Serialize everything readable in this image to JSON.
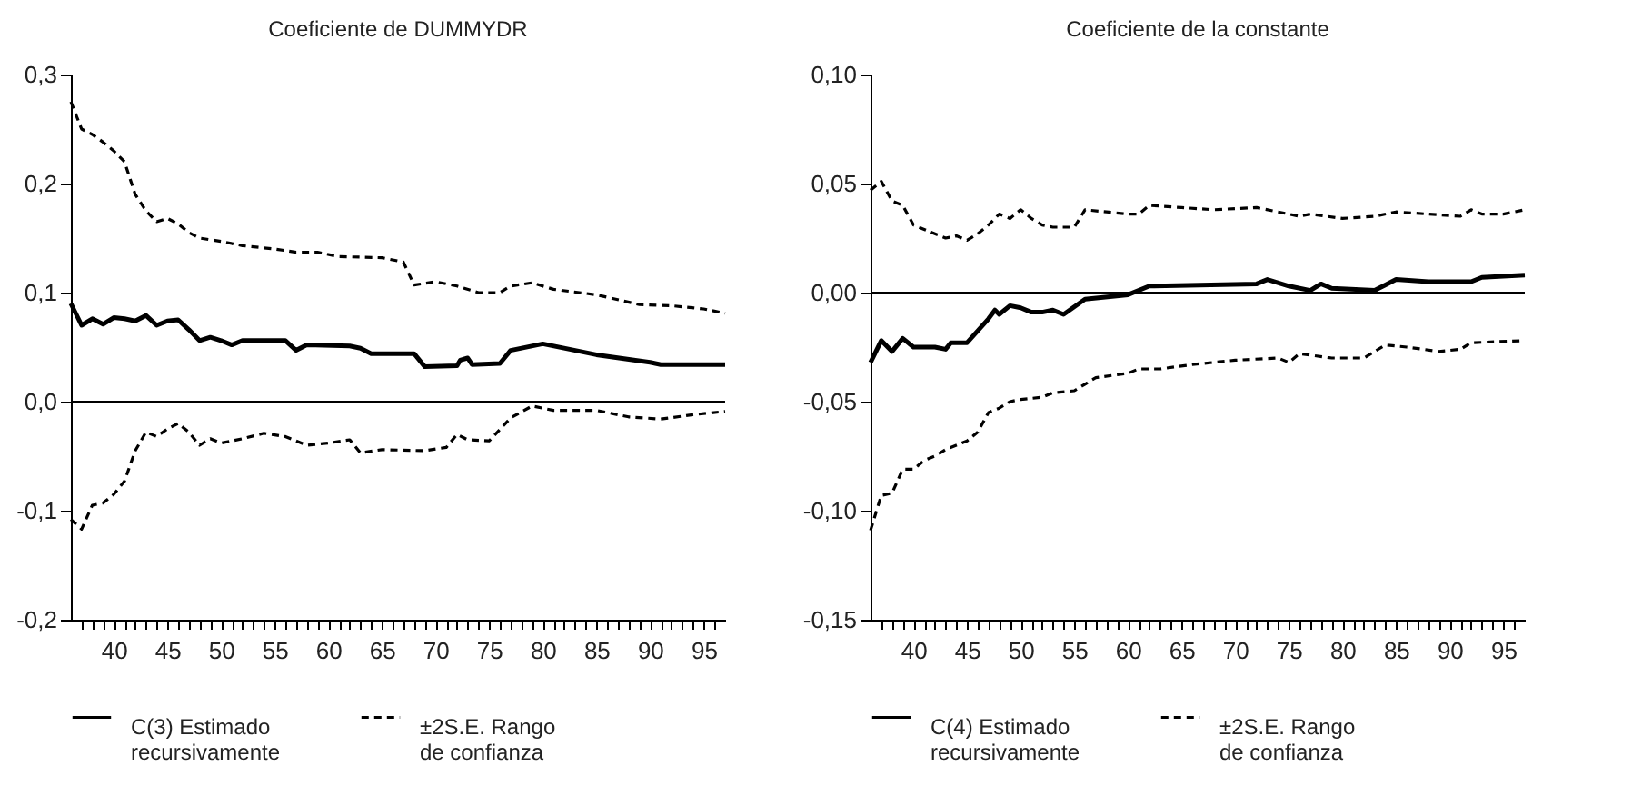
{
  "chart_data": [
    {
      "type": "line",
      "title": "Coeficiente de DUMMYDR",
      "xlim": [
        36,
        97
      ],
      "xticks": [
        {
          "value": 37,
          "label": null
        },
        {
          "value": 38,
          "label": null
        },
        {
          "value": 39,
          "label": null
        },
        40,
        {
          "value": 41,
          "label": null
        },
        {
          "value": 42,
          "label": null
        },
        {
          "value": 43,
          "label": null
        },
        {
          "value": 44,
          "label": null
        },
        45,
        {
          "value": 46,
          "label": null
        },
        {
          "value": 47,
          "label": null
        },
        {
          "value": 48,
          "label": null
        },
        {
          "value": 49,
          "label": null
        },
        50,
        {
          "value": 51,
          "label": null
        },
        {
          "value": 52,
          "label": null
        },
        {
          "value": 53,
          "label": null
        },
        {
          "value": 54,
          "label": null
        },
        55,
        {
          "value": 56,
          "label": null
        },
        {
          "value": 57,
          "label": null
        },
        {
          "value": 58,
          "label": null
        },
        {
          "value": 59,
          "label": null
        },
        60,
        {
          "value": 61,
          "label": null
        },
        {
          "value": 62,
          "label": null
        },
        {
          "value": 63,
          "label": null
        },
        {
          "value": 64,
          "label": null
        },
        65,
        {
          "value": 66,
          "label": null
        },
        {
          "value": 67,
          "label": null
        },
        {
          "value": 68,
          "label": null
        },
        {
          "value": 69,
          "label": null
        },
        70,
        {
          "value": 71,
          "label": null
        },
        {
          "value": 72,
          "label": null
        },
        {
          "value": 73,
          "label": null
        },
        {
          "value": 74,
          "label": null
        },
        75,
        {
          "value": 76,
          "label": null
        },
        {
          "value": 77,
          "label": null
        },
        {
          "value": 78,
          "label": null
        },
        {
          "value": 79,
          "label": null
        },
        80,
        {
          "value": 81,
          "label": null
        },
        {
          "value": 82,
          "label": null
        },
        {
          "value": 83,
          "label": null
        },
        {
          "value": 84,
          "label": null
        },
        85,
        {
          "value": 86,
          "label": null
        },
        {
          "value": 87,
          "label": null
        },
        {
          "value": 88,
          "label": null
        },
        {
          "value": 89,
          "label": null
        },
        90,
        {
          "value": 91,
          "label": null
        },
        {
          "value": 92,
          "label": null
        },
        {
          "value": 93,
          "label": null
        },
        {
          "value": 94,
          "label": null
        },
        95,
        {
          "value": 96,
          "label": null
        }
      ],
      "ylim": [
        -0.2,
        0.3
      ],
      "yticks": [
        {
          "value": -0.2,
          "label": "-0,2"
        },
        {
          "value": -0.1,
          "label": "-0,1"
        },
        {
          "value": 0,
          "label": "0,0"
        },
        {
          "value": 0.1,
          "label": "0,1"
        },
        {
          "value": 0.2,
          "label": "0,2"
        },
        {
          "value": 0.3,
          "label": "0,3"
        }
      ],
      "grid": false,
      "legend": "bottom",
      "marker": "none",
      "ref_lines": [
        {
          "axis": "y",
          "value": 0,
          "label": null,
          "color": "#000000",
          "line_style": "solid"
        }
      ],
      "series": [
        {
          "name": "C(3) Estimado recursivamente",
          "color": "#000000",
          "line_style": "solid",
          "x": [
            36,
            37,
            38,
            39,
            40,
            41,
            42,
            43,
            44,
            45,
            46,
            47,
            48,
            49,
            50,
            51,
            52,
            56,
            57,
            58,
            62,
            63,
            64,
            68,
            69,
            72,
            72.3,
            73,
            73.4,
            76,
            77,
            80,
            85,
            90,
            91,
            97
          ],
          "values": [
            0.09,
            0.07,
            0.076,
            0.071,
            0.077,
            0.076,
            0.074,
            0.079,
            0.07,
            0.074,
            0.075,
            0.066,
            0.056,
            0.059,
            0.056,
            0.052,
            0.056,
            0.056,
            0.047,
            0.052,
            0.051,
            0.049,
            0.044,
            0.044,
            0.032,
            0.033,
            0.038,
            0.04,
            0.034,
            0.035,
            0.047,
            0.053,
            0.043,
            0.036,
            0.034,
            0.034
          ]
        },
        {
          "name": "±2S.E. Rango de confianza",
          "color": "#000000",
          "line_style": "dashed",
          "x": [
            36,
            37,
            38,
            39,
            40,
            41,
            42,
            43,
            44,
            45,
            46,
            47,
            48,
            50,
            52,
            55,
            57,
            59,
            61,
            65,
            67,
            68,
            70,
            72,
            74,
            76,
            77,
            79,
            81,
            85,
            89,
            92,
            95,
            97
          ],
          "values": [
            0.275,
            0.25,
            0.245,
            0.238,
            0.23,
            0.22,
            0.19,
            0.175,
            0.165,
            0.168,
            0.163,
            0.155,
            0.15,
            0.147,
            0.143,
            0.14,
            0.137,
            0.137,
            0.133,
            0.132,
            0.128,
            0.107,
            0.11,
            0.106,
            0.1,
            0.1,
            0.106,
            0.109,
            0.103,
            0.098,
            0.089,
            0.088,
            0.085,
            0.081
          ]
        },
        {
          "color": "#000000",
          "line_style": "dashed",
          "x": [
            36,
            37,
            38,
            39,
            40,
            41,
            42,
            43,
            44,
            45,
            46,
            47,
            48,
            49,
            50,
            52,
            54,
            56,
            58,
            60,
            62,
            63,
            65,
            69,
            71,
            72,
            73,
            75,
            77,
            79,
            81,
            85,
            88,
            91,
            94,
            97
          ],
          "values": [
            -0.108,
            -0.117,
            -0.095,
            -0.093,
            -0.085,
            -0.073,
            -0.045,
            -0.028,
            -0.032,
            -0.025,
            -0.02,
            -0.028,
            -0.04,
            -0.034,
            -0.038,
            -0.034,
            -0.029,
            -0.032,
            -0.04,
            -0.038,
            -0.035,
            -0.047,
            -0.044,
            -0.045,
            -0.042,
            -0.03,
            -0.035,
            -0.036,
            -0.015,
            -0.004,
            -0.008,
            -0.008,
            -0.014,
            -0.016,
            -0.012,
            -0.009
          ]
        }
      ]
    },
    {
      "type": "line",
      "title": "Coeficiente de la constante",
      "xlim": [
        36,
        97
      ],
      "xticks": [
        {
          "value": 37,
          "label": null
        },
        {
          "value": 38,
          "label": null
        },
        {
          "value": 39,
          "label": null
        },
        40,
        {
          "value": 41,
          "label": null
        },
        {
          "value": 42,
          "label": null
        },
        {
          "value": 43,
          "label": null
        },
        {
          "value": 44,
          "label": null
        },
        45,
        {
          "value": 46,
          "label": null
        },
        {
          "value": 47,
          "label": null
        },
        {
          "value": 48,
          "label": null
        },
        {
          "value": 49,
          "label": null
        },
        50,
        {
          "value": 51,
          "label": null
        },
        {
          "value": 52,
          "label": null
        },
        {
          "value": 53,
          "label": null
        },
        {
          "value": 54,
          "label": null
        },
        55,
        {
          "value": 56,
          "label": null
        },
        {
          "value": 57,
          "label": null
        },
        {
          "value": 58,
          "label": null
        },
        {
          "value": 59,
          "label": null
        },
        60,
        {
          "value": 61,
          "label": null
        },
        {
          "value": 62,
          "label": null
        },
        {
          "value": 63,
          "label": null
        },
        {
          "value": 64,
          "label": null
        },
        65,
        {
          "value": 66,
          "label": null
        },
        {
          "value": 67,
          "label": null
        },
        {
          "value": 68,
          "label": null
        },
        {
          "value": 69,
          "label": null
        },
        70,
        {
          "value": 71,
          "label": null
        },
        {
          "value": 72,
          "label": null
        },
        {
          "value": 73,
          "label": null
        },
        {
          "value": 74,
          "label": null
        },
        75,
        {
          "value": 76,
          "label": null
        },
        {
          "value": 77,
          "label": null
        },
        {
          "value": 78,
          "label": null
        },
        {
          "value": 79,
          "label": null
        },
        80,
        {
          "value": 81,
          "label": null
        },
        {
          "value": 82,
          "label": null
        },
        {
          "value": 83,
          "label": null
        },
        {
          "value": 84,
          "label": null
        },
        85,
        {
          "value": 86,
          "label": null
        },
        {
          "value": 87,
          "label": null
        },
        {
          "value": 88,
          "label": null
        },
        {
          "value": 89,
          "label": null
        },
        90,
        {
          "value": 91,
          "label": null
        },
        {
          "value": 92,
          "label": null
        },
        {
          "value": 93,
          "label": null
        },
        {
          "value": 94,
          "label": null
        },
        95,
        {
          "value": 96,
          "label": null
        }
      ],
      "ylim": [
        -0.15,
        0.1
      ],
      "yticks": [
        {
          "value": -0.15,
          "label": "-0,15"
        },
        {
          "value": -0.1,
          "label": "-0,10"
        },
        {
          "value": -0.05,
          "label": "-0,05"
        },
        {
          "value": 0,
          "label": "0,00"
        },
        {
          "value": 0.05,
          "label": "0,05"
        },
        {
          "value": 0.1,
          "label": "0,10"
        }
      ],
      "grid": false,
      "legend": "bottom",
      "marker": "none",
      "ref_lines": [
        {
          "axis": "y",
          "value": 0,
          "label": null,
          "color": "#000000",
          "line_style": "solid"
        }
      ],
      "series": [
        {
          "name": "C(4) Estimado recursivamente",
          "color": "#000000",
          "line_style": "solid",
          "x": [
            36,
            37,
            38,
            39,
            40,
            42,
            43,
            43.5,
            45,
            47,
            47.6,
            48,
            49,
            50,
            51,
            52,
            53,
            54,
            56,
            60,
            62,
            72,
            73,
            75,
            77,
            78,
            79,
            83,
            85,
            88,
            92,
            93,
            97
          ],
          "values": [
            -0.032,
            -0.022,
            -0.027,
            -0.021,
            -0.025,
            -0.025,
            -0.026,
            -0.023,
            -0.023,
            -0.012,
            -0.008,
            -0.01,
            -0.006,
            -0.007,
            -0.009,
            -0.009,
            -0.008,
            -0.01,
            -0.003,
            -0.001,
            0.003,
            0.004,
            0.006,
            0.003,
            0.001,
            0.004,
            0.002,
            0.001,
            0.006,
            0.005,
            0.005,
            0.007,
            0.008
          ]
        },
        {
          "name": "±2S.E. Rango de confianza",
          "color": "#000000",
          "line_style": "dashed",
          "x": [
            36,
            37,
            38,
            39,
            40,
            41,
            42,
            43,
            44,
            45,
            46,
            47,
            48,
            49,
            50,
            51,
            52,
            53,
            55,
            56,
            58,
            60,
            61,
            62,
            65,
            68,
            72,
            74,
            76,
            77,
            80,
            83,
            85,
            88,
            91,
            92,
            93,
            95,
            97
          ],
          "values": [
            0.047,
            0.051,
            0.042,
            0.04,
            0.031,
            0.029,
            0.027,
            0.025,
            0.026,
            0.024,
            0.027,
            0.031,
            0.036,
            0.034,
            0.038,
            0.034,
            0.031,
            0.03,
            0.03,
            0.038,
            0.037,
            0.036,
            0.036,
            0.04,
            0.039,
            0.038,
            0.039,
            0.037,
            0.035,
            0.036,
            0.034,
            0.035,
            0.037,
            0.036,
            0.035,
            0.038,
            0.036,
            0.036,
            0.038
          ]
        },
        {
          "color": "#000000",
          "line_style": "dashed",
          "x": [
            36,
            37,
            38,
            39,
            40,
            41,
            42,
            43,
            44,
            45,
            46,
            47,
            48,
            49,
            50,
            52,
            53,
            55,
            56,
            57,
            60,
            61,
            63,
            66,
            70,
            74,
            75,
            76,
            79,
            82,
            84,
            86,
            89,
            91,
            92,
            97
          ],
          "values": [
            -0.109,
            -0.093,
            -0.092,
            -0.081,
            -0.081,
            -0.077,
            -0.075,
            -0.072,
            -0.07,
            -0.068,
            -0.064,
            -0.055,
            -0.053,
            -0.05,
            -0.049,
            -0.048,
            -0.046,
            -0.045,
            -0.042,
            -0.039,
            -0.037,
            -0.035,
            -0.035,
            -0.033,
            -0.031,
            -0.03,
            -0.032,
            -0.028,
            -0.03,
            -0.03,
            -0.024,
            -0.025,
            -0.027,
            -0.026,
            -0.023,
            -0.022
          ]
        }
      ]
    }
  ]
}
